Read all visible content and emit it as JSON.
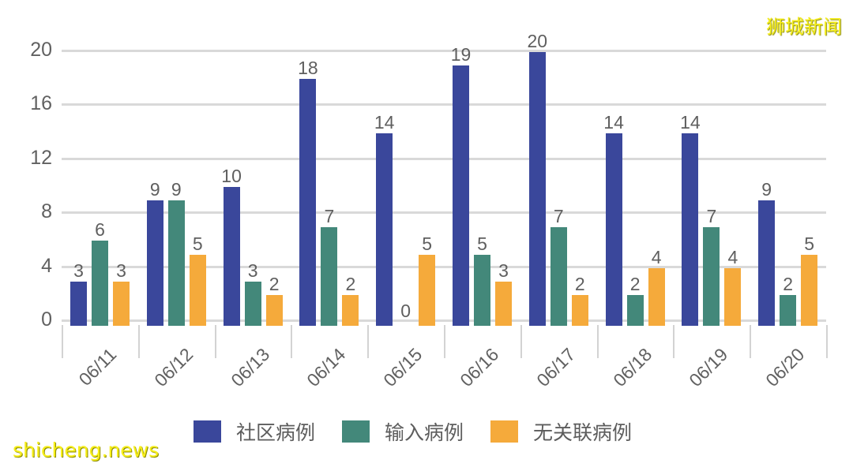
{
  "watermarks": {
    "top_right": "狮城新闻",
    "bottom_left": "shicheng.news"
  },
  "colors": {
    "community": "#3a479b",
    "imported": "#43887a",
    "unlinked": "#f5aa3b"
  },
  "legend": [
    {
      "label": "社区病例",
      "color": "#3a479b"
    },
    {
      "label": "输入病例",
      "color": "#43887a"
    },
    {
      "label": "无关联病例",
      "color": "#f5aa3b"
    }
  ],
  "yticks": [
    "0",
    "4",
    "8",
    "12",
    "16",
    "20"
  ],
  "chart_data": {
    "type": "bar",
    "title": "",
    "xlabel": "",
    "ylabel": "",
    "ylim": [
      0,
      20
    ],
    "grid": true,
    "legend_position": "bottom",
    "categories": [
      "06/11",
      "06/12",
      "06/13",
      "06/14",
      "06/15",
      "06/16",
      "06/17",
      "06/18",
      "06/19",
      "06/20"
    ],
    "series": [
      {
        "name": "社区病例",
        "color": "#3a479b",
        "values": [
          3,
          9,
          10,
          18,
          14,
          19,
          20,
          14,
          14,
          9
        ]
      },
      {
        "name": "输入病例",
        "color": "#43887a",
        "values": [
          6,
          9,
          3,
          7,
          0,
          5,
          7,
          2,
          7,
          2
        ]
      },
      {
        "name": "无关联病例",
        "color": "#f5aa3b",
        "values": [
          3,
          5,
          2,
          2,
          5,
          3,
          2,
          4,
          4,
          5
        ]
      }
    ]
  }
}
